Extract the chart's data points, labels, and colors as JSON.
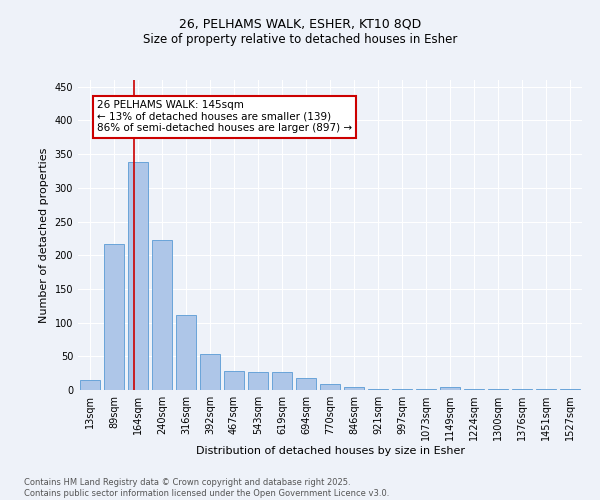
{
  "title1": "26, PELHAMS WALK, ESHER, KT10 8QD",
  "title2": "Size of property relative to detached houses in Esher",
  "xlabel": "Distribution of detached houses by size in Esher",
  "ylabel": "Number of detached properties",
  "categories": [
    "13sqm",
    "89sqm",
    "164sqm",
    "240sqm",
    "316sqm",
    "392sqm",
    "467sqm",
    "543sqm",
    "619sqm",
    "694sqm",
    "770sqm",
    "846sqm",
    "921sqm",
    "997sqm",
    "1073sqm",
    "1149sqm",
    "1224sqm",
    "1300sqm",
    "1376sqm",
    "1451sqm",
    "1527sqm"
  ],
  "values": [
    15,
    216,
    338,
    222,
    112,
    54,
    28,
    26,
    26,
    18,
    9,
    5,
    2,
    2,
    1,
    4,
    2,
    1,
    2,
    1,
    2
  ],
  "bar_color": "#aec6e8",
  "bar_edge_color": "#5a9bd5",
  "ylim": [
    0,
    460
  ],
  "yticks": [
    0,
    50,
    100,
    150,
    200,
    250,
    300,
    350,
    400,
    450
  ],
  "redline_x": 1.82,
  "annotation_text": "26 PELHAMS WALK: 145sqm\n← 13% of detached houses are smaller (139)\n86% of semi-detached houses are larger (897) →",
  "annotation_box_color": "#ffffff",
  "annotation_box_edge": "#cc0000",
  "footer1": "Contains HM Land Registry data © Crown copyright and database right 2025.",
  "footer2": "Contains public sector information licensed under the Open Government Licence v3.0.",
  "bg_color": "#eef2f9",
  "plot_bg_color": "#eef2f9",
  "grid_color": "#ffffff",
  "redline_color": "#cc0000",
  "title_fontsize": 9,
  "axis_label_fontsize": 8,
  "tick_fontsize": 7,
  "annotation_fontsize": 7.5,
  "footer_fontsize": 6
}
